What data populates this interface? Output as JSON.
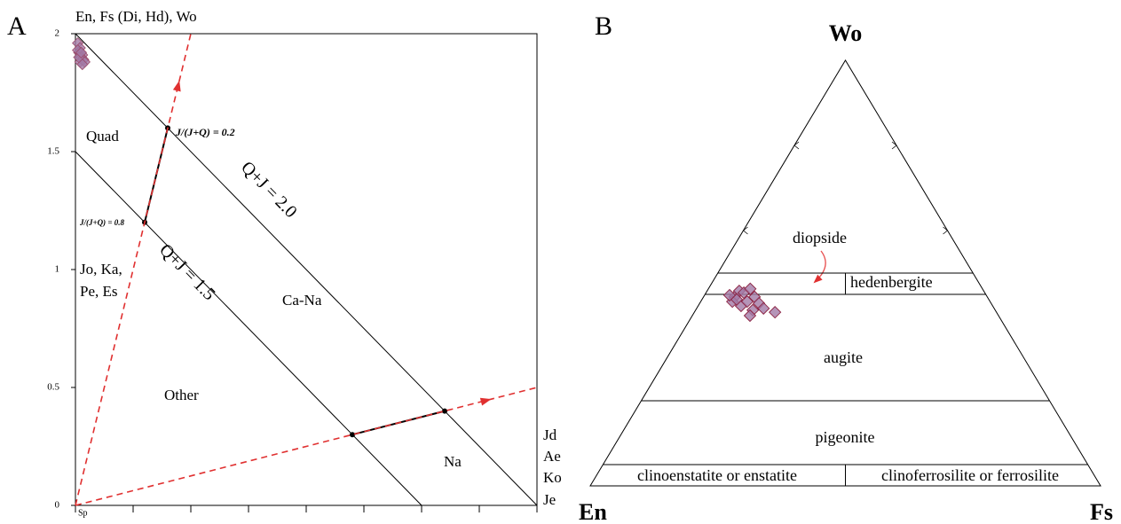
{
  "chart_data": [
    {
      "type": "scatter",
      "panel_label": "A",
      "title": "En, Fs (Di, Hd), Wo",
      "xlim": [
        0,
        2
      ],
      "ylim": [
        0,
        2
      ],
      "xticks": [
        0,
        0.25,
        0.5,
        0.75,
        1,
        1.25,
        1.5,
        1.75,
        2
      ],
      "yticks": [
        0,
        0.5,
        1,
        1.5,
        2
      ],
      "x": [
        0.01,
        0.02,
        0.015,
        0.03,
        0.025,
        0.035,
        0.02,
        0.04,
        0.01,
        0.03,
        0.015,
        0.025
      ],
      "y": [
        1.96,
        1.94,
        1.92,
        1.91,
        1.9,
        1.89,
        1.88,
        1.88,
        1.93,
        1.87,
        1.9,
        1.92
      ],
      "color": "#a27aa6",
      "edge_color": "#9a4a6a",
      "lines": [
        {
          "x": [
            0,
            2
          ],
          "y": [
            2,
            0
          ],
          "style": "solid",
          "color": "#000000"
        },
        {
          "x": [
            0,
            1.5
          ],
          "y": [
            1.5,
            0
          ],
          "style": "solid",
          "color": "#000000"
        },
        {
          "x": [
            0.3,
            0.4
          ],
          "y": [
            1.2,
            1.6
          ],
          "style": "bold",
          "color": "#000000",
          "nodes": true
        },
        {
          "x": [
            1.2,
            1.6
          ],
          "y": [
            0.3,
            0.4
          ],
          "style": "bold",
          "color": "#000000",
          "nodes": true
        },
        {
          "x": [
            0,
            0.5
          ],
          "y": [
            0,
            2
          ],
          "style": "dashed",
          "color": "#e03030",
          "arrow": true
        },
        {
          "x": [
            0,
            2
          ],
          "y": [
            0,
            0.5
          ],
          "style": "dashed",
          "color": "#e03030",
          "arrow": true
        }
      ],
      "annotations": [
        "Quad",
        "J/(J+Q) = 0.2",
        "J/(J+Q) = 0.8",
        "Q+J = 2.0",
        "Q+J = 1.5",
        "Jo, Ka,",
        "Pe, Es",
        "Ca-Na",
        "Other",
        "Na",
        "Jd",
        "Ae",
        "Ko",
        "Je",
        "Sp"
      ]
    },
    {
      "type": "ternary",
      "panel_label": "B",
      "vertex_labels": {
        "top": "Wo",
        "left": "En",
        "right": "Fs"
      },
      "points": {
        "wo": [
          44.4,
          45.8,
          45.4,
          46.3,
          43.3,
          42.3,
          43.3,
          44.4,
          42.9,
          41.3,
          41.7,
          40.8,
          40.0,
          43.8,
          44.8
        ],
        "en": [
          49.5,
          47.9,
          47.2,
          45.5,
          50.5,
          49.3,
          47.6,
          45.6,
          45.5,
          47.5,
          45.2,
          43.4,
          48.7,
          49.4,
          50.3
        ],
        "fs": [
          6.1,
          6.3,
          7.4,
          8.2,
          6.2,
          8.4,
          9.1,
          10.0,
          11.6,
          11.2,
          13.1,
          15.8,
          11.3,
          6.8,
          4.9
        ]
      },
      "color": "#a27aa6",
      "edge_color": "#8b2040",
      "boundaries": [
        50,
        45,
        20,
        5
      ],
      "dividers": [
        {
          "from": 45,
          "to": 50
        },
        {
          "from": 0,
          "to": 5
        }
      ],
      "side_ticks": [
        60,
        80
      ],
      "field_labels": [
        "diopside",
        "hedenbergite",
        "augite",
        "pigeonite",
        "clinoenstatite or enstatite",
        "clinoferrosilite or ferrosilite"
      ]
    }
  ]
}
